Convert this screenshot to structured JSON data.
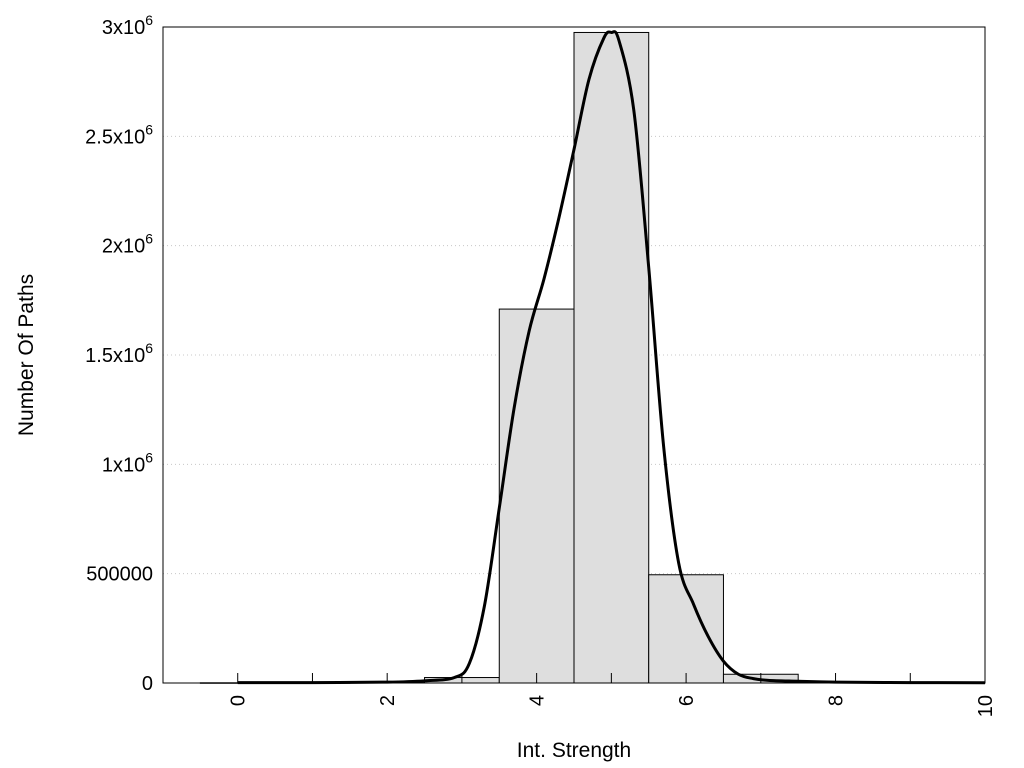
{
  "chart_data": {
    "type": "bar",
    "xlabel": "Int. Strength",
    "ylabel": "Number Of Paths",
    "xlim": [
      -1,
      10
    ],
    "ylim": [
      0,
      3000000
    ],
    "grid": true,
    "x_ticks": [
      {
        "value": 0,
        "label": "0"
      },
      {
        "value": 2,
        "label": "2"
      },
      {
        "value": 4,
        "label": "4"
      },
      {
        "value": 6,
        "label": "6"
      },
      {
        "value": 8,
        "label": "8"
      },
      {
        "value": 10,
        "label": "10"
      }
    ],
    "y_ticks": [
      {
        "value": 0,
        "base": "0",
        "exp": ""
      },
      {
        "value": 500000,
        "base": "500000",
        "exp": ""
      },
      {
        "value": 1000000,
        "base": "1x10",
        "exp": "6"
      },
      {
        "value": 1500000,
        "base": "1.5x10",
        "exp": "6"
      },
      {
        "value": 2000000,
        "base": "2x10",
        "exp": "6"
      },
      {
        "value": 2500000,
        "base": "2.5x10",
        "exp": "6"
      },
      {
        "value": 3000000,
        "base": "3x10",
        "exp": "6"
      }
    ],
    "bars": [
      {
        "x": 0,
        "y": 1000
      },
      {
        "x": 1,
        "y": 1500
      },
      {
        "x": 2,
        "y": 5000
      },
      {
        "x": 3,
        "y": 25000
      },
      {
        "x": 4,
        "y": 1710000
      },
      {
        "x": 5,
        "y": 2975000
      },
      {
        "x": 6,
        "y": 495000
      },
      {
        "x": 7,
        "y": 40000
      },
      {
        "x": 8,
        "y": 5000
      },
      {
        "x": 9,
        "y": 2000
      }
    ],
    "curve": {
      "x": [
        0,
        1,
        2,
        2.5,
        2.9,
        3.1,
        3.3,
        3.5,
        3.7,
        3.9,
        4.1,
        4.3,
        4.5,
        4.7,
        4.9,
        5.0,
        5.1,
        5.3,
        5.5,
        5.7,
        5.9,
        6.1,
        6.3,
        6.5,
        6.7,
        6.9,
        7.1,
        7.5,
        8,
        9,
        10
      ],
      "y": [
        2000,
        2000,
        4000,
        10000,
        25000,
        90000,
        350000,
        800000,
        1260000,
        1610000,
        1850000,
        2130000,
        2440000,
        2760000,
        2950000,
        2975000,
        2940000,
        2620000,
        1900000,
        1080000,
        550000,
        360000,
        210000,
        100000,
        40000,
        20000,
        12000,
        8000,
        4000,
        2000,
        1000
      ]
    },
    "colors": {
      "bar_fill": "#dedede",
      "bar_stroke": "#000000",
      "curve": "#000000",
      "grid": "#c8c8c8"
    }
  }
}
